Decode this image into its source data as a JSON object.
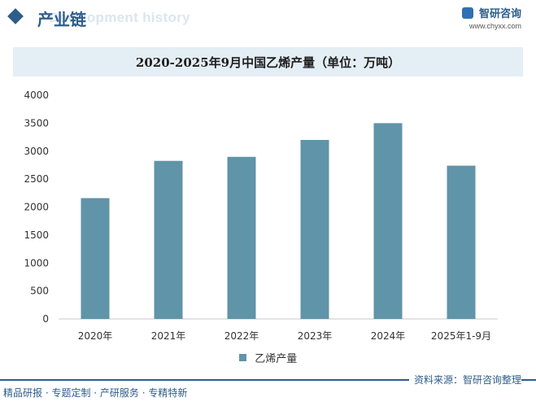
{
  "header": {
    "section_title": "产业链",
    "ghost_text": "Development history",
    "brand_name": "智研咨询",
    "brand_url": "www.chyxx.com"
  },
  "chart_data": {
    "type": "bar",
    "title": "2020-2025年9月中国乙烯产量（单位：万吨）",
    "categories": [
      "2020年",
      "2021年",
      "2022年",
      "2023年",
      "2024年",
      "2025年1-9月"
    ],
    "series": [
      {
        "name": "乙烯产量",
        "values": [
          2160,
          2826,
          2898,
          3200,
          3500,
          2740
        ]
      }
    ],
    "ylim": [
      0,
      4000
    ],
    "yticks": [
      0,
      500,
      1000,
      1500,
      2000,
      2500,
      3000,
      3500,
      4000
    ],
    "grid": false,
    "legend": "bottom",
    "bar_color": "#6094a8"
  },
  "footer": {
    "left_text": "精品研报 · 专题定制 · 产研服务 · 专精特新",
    "source": "资料来源：智研咨询整理"
  }
}
